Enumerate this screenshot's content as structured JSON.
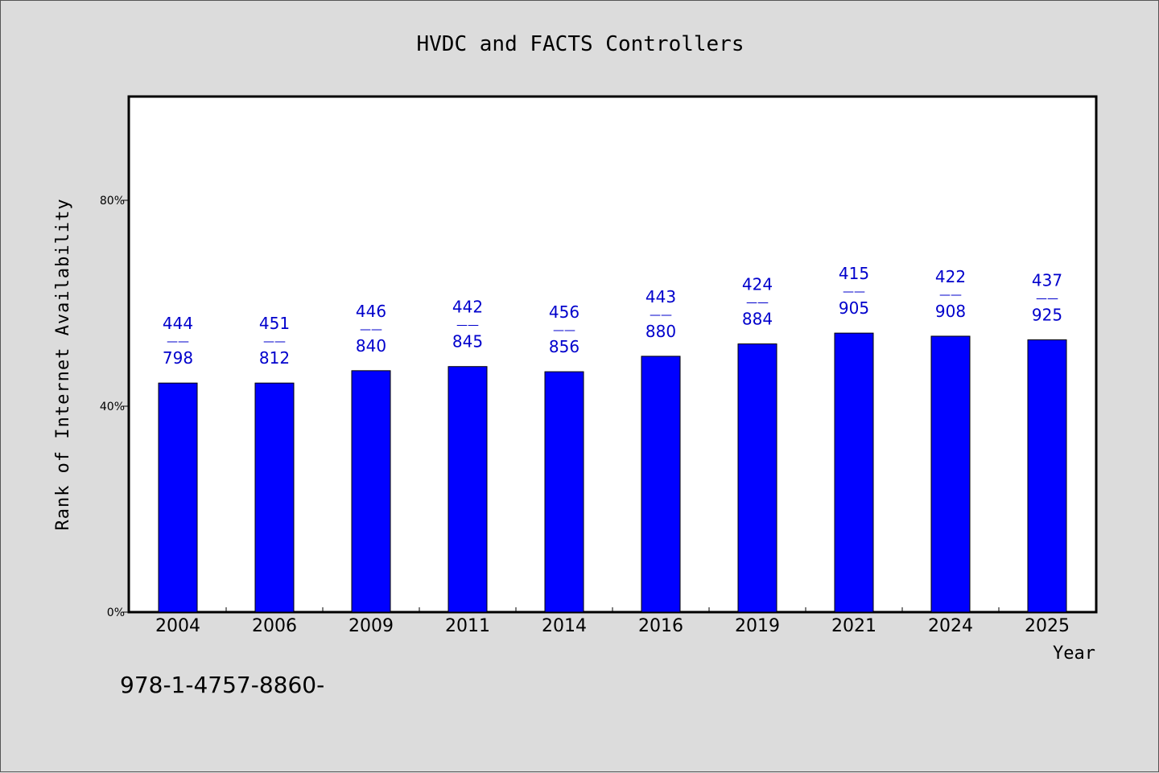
{
  "chart_data": {
    "type": "bar",
    "title": "HVDC and FACTS Controllers",
    "xlabel": "Year",
    "ylabel": "Rank of Internet Availability",
    "ylim": [
      0,
      100
    ],
    "yticks": [
      0,
      40,
      80
    ],
    "ytick_labels": [
      "0%",
      "40%",
      "80%"
    ],
    "categories": [
      "2004",
      "2006",
      "2009",
      "2011",
      "2014",
      "2016",
      "2019",
      "2021",
      "2024",
      "2025"
    ],
    "values": [
      44.5,
      44.5,
      46.9,
      47.7,
      46.7,
      49.7,
      52.1,
      54.2,
      53.6,
      52.9
    ],
    "labels_top": [
      "444",
      "451",
      "446",
      "442",
      "456",
      "443",
      "424",
      "415",
      "422",
      "437"
    ],
    "labels_bottom": [
      "798",
      "812",
      "840",
      "845",
      "856",
      "880",
      "884",
      "905",
      "908",
      "925"
    ],
    "label_separator": "——",
    "bar_color": "#0000ff",
    "label_color": "#0000cc",
    "grid": false
  },
  "footer": {
    "code": "978-1-4757-8860-"
  }
}
